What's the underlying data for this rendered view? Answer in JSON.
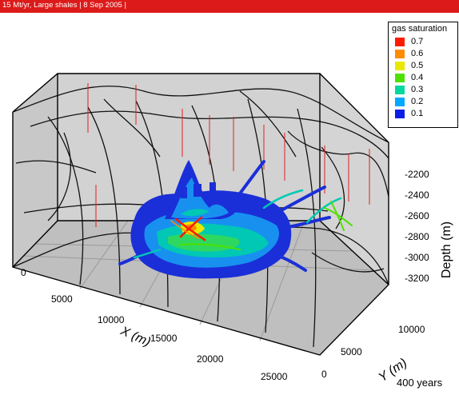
{
  "title": "15 Mt/yr, Large shales  |  8 Sep 2005  |",
  "legend": {
    "title": "gas saturation",
    "levels": [
      {
        "label": "0.7",
        "color": "#ff1a00"
      },
      {
        "label": "0.6",
        "color": "#ff8c00"
      },
      {
        "label": "0.5",
        "color": "#e8e800"
      },
      {
        "label": "0.4",
        "color": "#4ee000"
      },
      {
        "label": "0.3",
        "color": "#00d8a0"
      },
      {
        "label": "0.2",
        "color": "#00a8ff"
      },
      {
        "label": "0.1",
        "color": "#0a1ee8"
      }
    ]
  },
  "axes": {
    "x": {
      "label": "X (m)",
      "ticks": [
        "0",
        "5000",
        "10000",
        "15000",
        "20000",
        "25000"
      ]
    },
    "y": {
      "label": "Y (m)",
      "ticks": [
        "0",
        "5000",
        "10000"
      ]
    },
    "z": {
      "label": "Depth (m)",
      "ticks": [
        "-2200",
        "-2400",
        "-2600",
        "-2800",
        "-3000",
        "-3200"
      ]
    }
  },
  "time_label": "400 years"
}
